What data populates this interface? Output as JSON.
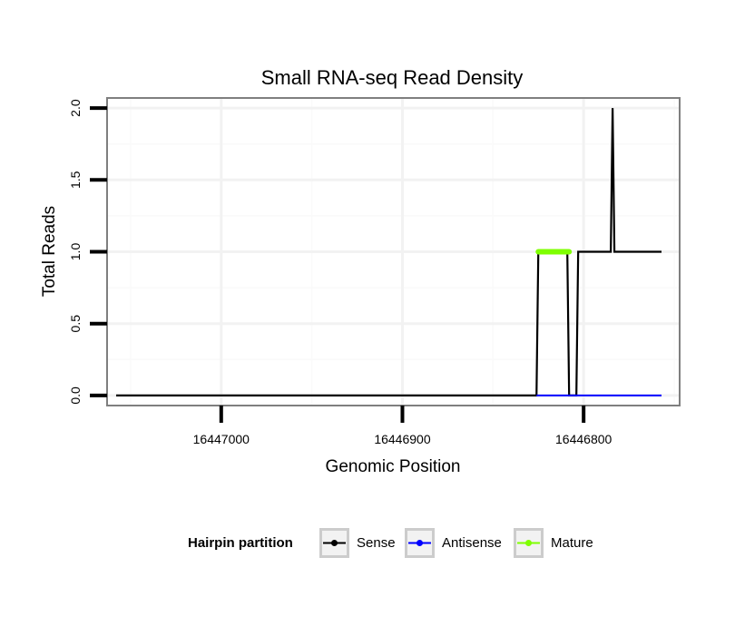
{
  "chart_data": {
    "type": "line",
    "title": "Small RNA-seq Read Density",
    "xlabel": "Genomic Position",
    "ylabel": "Total Reads",
    "x_reversed": true,
    "xlim": [
      16447063,
      16446747
    ],
    "ylim": [
      -0.07,
      2.07
    ],
    "x_ticks": [
      16447000,
      16446900,
      16446800
    ],
    "x_tick_labels": [
      "16447000",
      "16446900",
      "16446800"
    ],
    "y_ticks": [
      0.0,
      0.5,
      1.0,
      1.5,
      2.0
    ],
    "y_tick_labels": [
      "0.0",
      "0.5",
      "1.0",
      "1.5",
      "2.0"
    ],
    "grid": true,
    "legend_position": "bottom",
    "legend_title": "Hairpin partition",
    "series": [
      {
        "name": "Sense",
        "color": "#000000",
        "x": [
          16447058,
          16446826,
          16446825,
          16446809,
          16446808,
          16446804,
          16446803,
          16446785,
          16446784,
          16446783,
          16446757
        ],
        "y": [
          0,
          0,
          1,
          1,
          0,
          0,
          1,
          1,
          2,
          1,
          1
        ]
      },
      {
        "name": "Antisense",
        "color": "#0000ff",
        "x": [
          16446826,
          16446757
        ],
        "y": [
          0,
          0
        ]
      },
      {
        "name": "Mature",
        "color": "#7fff00",
        "x": [
          16446825,
          16446808
        ],
        "y": [
          1,
          1
        ]
      }
    ]
  }
}
